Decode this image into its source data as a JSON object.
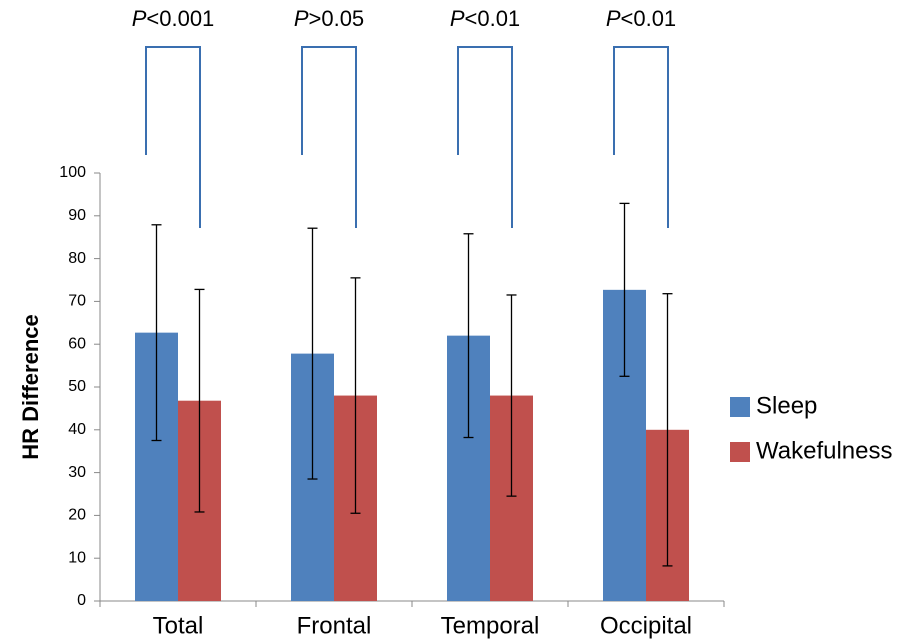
{
  "chart_data": {
    "type": "bar",
    "y_label": "HR Difference",
    "categories": [
      "Total",
      "Frontal",
      "Temporal",
      "Occipital"
    ],
    "series": [
      {
        "name": "Sleep",
        "color": "#4f81bd",
        "values": [
          62.7,
          57.8,
          62,
          72.7
        ],
        "errors": [
          25.2,
          29.3,
          23.8,
          20.2
        ]
      },
      {
        "name": "Wakefulness",
        "color": "#c0504d",
        "values": [
          46.8,
          48,
          48,
          40
        ],
        "errors": [
          26,
          27.5,
          23.5,
          31.8
        ]
      }
    ],
    "significance": [
      {
        "symbol": "P",
        "text": "<0.001"
      },
      {
        "symbol": "P",
        "text": ">0.05"
      },
      {
        "symbol": "P",
        "text": "<0.01"
      },
      {
        "symbol": "P",
        "text": "<0.01"
      }
    ],
    "ylim": [
      0,
      100
    ],
    "yticks": [
      0,
      10,
      20,
      30,
      40,
      50,
      60,
      70,
      80,
      90,
      100
    ],
    "grid": false,
    "legend": "right"
  }
}
